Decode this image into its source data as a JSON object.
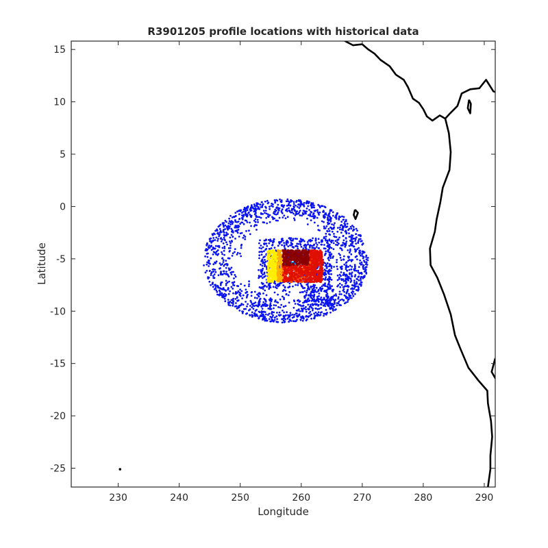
{
  "chart_data": {
    "type": "scatter",
    "title": "R3901205 profile locations with historical data",
    "xlabel": "Longitude",
    "ylabel": "Latitude",
    "xlim": [
      222.3,
      291.8
    ],
    "ylim": [
      -26.8,
      15.8
    ],
    "xticks": [
      230,
      240,
      250,
      260,
      270,
      280,
      290
    ],
    "yticks": [
      15,
      10,
      5,
      0,
      -5,
      -10,
      -15,
      -20,
      -25
    ],
    "xtick_labels": [
      "230",
      "240",
      "250",
      "260",
      "270",
      "280",
      "290"
    ],
    "ytick_labels": [
      "15",
      "10",
      "5",
      "0",
      "-5",
      "-10",
      "-15",
      "-20",
      "-25"
    ],
    "grid": false,
    "colors": {
      "historical": "#0a14f0",
      "coastline": "#000000",
      "profile_colormap": [
        "#00b4ff",
        "#ffee00",
        "#ffb000",
        "#ff5a00",
        "#e01000",
        "#8b0000"
      ]
    },
    "series": [
      {
        "role": "historical",
        "ring": {
          "center": [
            257.5,
            -5.2
          ],
          "lon_radius": [
            7.0,
            13.5
          ],
          "lat_radius": [
            3.8,
            5.9
          ]
        },
        "inner_cluster": {
          "lon_range": [
            253,
            265
          ],
          "lat_range": [
            -9.5,
            -3
          ]
        },
        "point_count": 2600
      },
      {
        "role": "profiles",
        "lon_range": [
          254.5,
          263.5
        ],
        "lat_range": [
          -7.2,
          -4.2
        ],
        "point_count": 1100
      }
    ],
    "coastline": [
      [
        [
          266.0,
          16.2
        ],
        [
          267.5,
          15.7
        ],
        [
          268.5,
          15.4
        ],
        [
          270.0,
          15.5
        ],
        [
          271.0,
          15.0
        ],
        [
          272.0,
          14.6
        ],
        [
          273.0,
          14.0
        ],
        [
          274.5,
          13.4
        ],
        [
          275.5,
          12.6
        ],
        [
          276.8,
          12.1
        ],
        [
          277.5,
          11.4
        ],
        [
          278.3,
          10.3
        ],
        [
          279.3,
          9.9
        ],
        [
          280.0,
          9.3
        ],
        [
          280.6,
          8.6
        ],
        [
          281.5,
          8.2
        ],
        [
          282.7,
          8.7
        ],
        [
          283.6,
          8.4
        ],
        [
          284.4,
          8.9
        ],
        [
          285.6,
          9.6
        ],
        [
          286.3,
          10.8
        ],
        [
          287.7,
          11.2
        ],
        [
          289.2,
          11.3
        ],
        [
          290.3,
          12.1
        ],
        [
          291.5,
          11.0
        ],
        [
          292.5,
          10.8
        ]
      ],
      [
        [
          283.6,
          8.4
        ],
        [
          284.2,
          7.0
        ],
        [
          284.5,
          5.2
        ],
        [
          284.3,
          3.5
        ],
        [
          283.2,
          1.8
        ],
        [
          282.8,
          0.4
        ],
        [
          282.2,
          -1.2
        ],
        [
          281.9,
          -2.4
        ],
        [
          281.1,
          -4.0
        ],
        [
          281.2,
          -5.6
        ],
        [
          282.3,
          -6.8
        ],
        [
          283.4,
          -8.4
        ],
        [
          284.5,
          -10.3
        ],
        [
          285.2,
          -12.3
        ],
        [
          286.1,
          -13.6
        ],
        [
          287.4,
          -15.4
        ],
        [
          289.0,
          -16.6
        ],
        [
          290.5,
          -17.6
        ],
        [
          290.6,
          -18.8
        ],
        [
          291.1,
          -20.5
        ],
        [
          291.3,
          -22.0
        ],
        [
          291.0,
          -23.8
        ],
        [
          291.0,
          -25.1
        ],
        [
          290.6,
          -26.8
        ]
      ],
      [
        [
          287.5,
          10.2
        ],
        [
          287.3,
          9.4
        ],
        [
          287.7,
          8.9
        ],
        [
          287.8,
          9.8
        ],
        [
          287.5,
          10.2
        ]
      ],
      [
        [
          268.8,
          -0.3
        ],
        [
          269.3,
          -0.6
        ],
        [
          268.9,
          -1.2
        ],
        [
          268.6,
          -0.8
        ],
        [
          268.8,
          -0.3
        ]
      ],
      [
        [
          291.8,
          -14.5
        ],
        [
          291.2,
          -15.8
        ],
        [
          292.0,
          -16.6
        ]
      ]
    ],
    "island_dot": [
      230.3,
      -25.1
    ]
  }
}
